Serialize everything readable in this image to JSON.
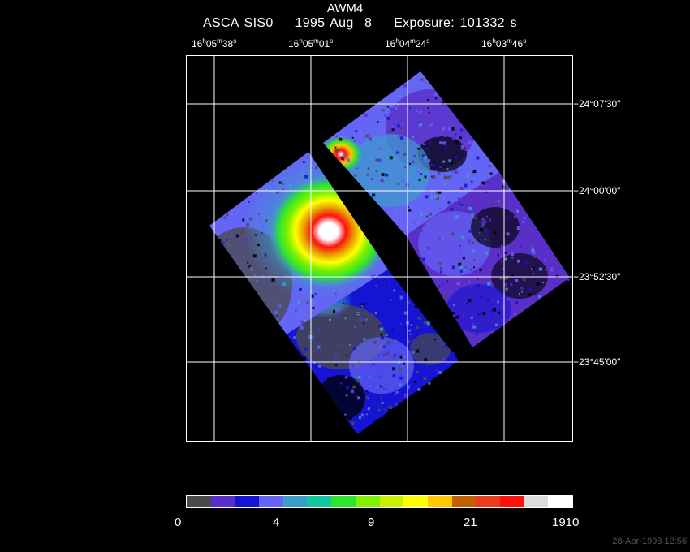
{
  "title": "AWM4",
  "subtitle": "ASCA SIS0    1995 Aug  8    Exposure: 101332 s",
  "ra_labels": [
    {
      "h": "16",
      "m": "05",
      "s": "38"
    },
    {
      "h": "16",
      "m": "05",
      "s": "01"
    },
    {
      "h": "16",
      "m": "04",
      "s": "24"
    },
    {
      "h": "16",
      "m": "03",
      "s": "46"
    }
  ],
  "dec_labels": [
    "+24°07'30\"",
    "+24°00'00\"",
    "+23°52'30\"",
    "+23°45'00\""
  ],
  "colorbar": {
    "labels": [
      "0",
      "4",
      "9",
      "21",
      "1910"
    ],
    "colors": [
      "#4a4a4a",
      "#5a2fc8",
      "#1414d2",
      "#6464f5",
      "#3c9ccc",
      "#10c8a0",
      "#2ee42e",
      "#80f000",
      "#c8f000",
      "#ffff00",
      "#ffc800",
      "#c06000",
      "#e83c1e",
      "#ff1010",
      "#dcdcdc",
      "#ffffff"
    ]
  },
  "timestamp": "28-Apr-1998 12:56"
}
